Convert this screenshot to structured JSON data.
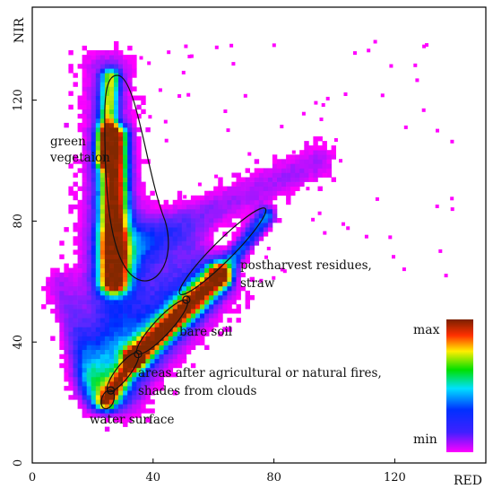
{
  "chart_data": {
    "type": "heatmap",
    "subtype": "2D scatter density (RED vs NIR feature space)",
    "xlabel": "RED",
    "ylabel": "NIR",
    "xlim": [
      0,
      150
    ],
    "ylim": [
      0,
      150
    ],
    "xticks": [
      "0",
      "40",
      "80",
      "120"
    ],
    "yticks": [
      "0",
      "40",
      "80",
      "120"
    ],
    "grid": false,
    "colorbar": {
      "max_label": "max",
      "min_label": "min",
      "stops": [
        "#ff00ff",
        "#0000ff",
        "#00ffff",
        "#00ff00",
        "#ffff00",
        "#ff0000",
        "#7a2000"
      ]
    },
    "clusters": [
      {
        "label": "green\nvegetaion",
        "center": [
          29,
          90
        ],
        "rx": 9,
        "ry": 40
      },
      {
        "label": "postharvest residues,\nstraw",
        "center": [
          60,
          66
        ],
        "rx": 27,
        "ry": 3.2
      },
      {
        "label": "bare soil",
        "center": [
          47,
          48
        ],
        "rx": 17,
        "ry": 3.0
      },
      {
        "label": "areas after agricultural or natural fires,\nshades from clouds",
        "center": [
          31,
          30
        ],
        "rx": 10,
        "ry": 2.5
      },
      {
        "label": "water surface",
        "center": [
          25,
          21
        ],
        "rx": 4.5,
        "ry": 2.2
      }
    ],
    "transition_points": [
      [
        26,
        24
      ],
      [
        35,
        36
      ],
      [
        51,
        54
      ]
    ],
    "density_colors": {
      "magenta": "#ff00ff",
      "blue": "#1f3cff",
      "cyan": "#00e5ff",
      "green": "#00e600",
      "yellow": "#ffee00",
      "red": "#ff2a00",
      "brown": "#8a3000"
    }
  }
}
